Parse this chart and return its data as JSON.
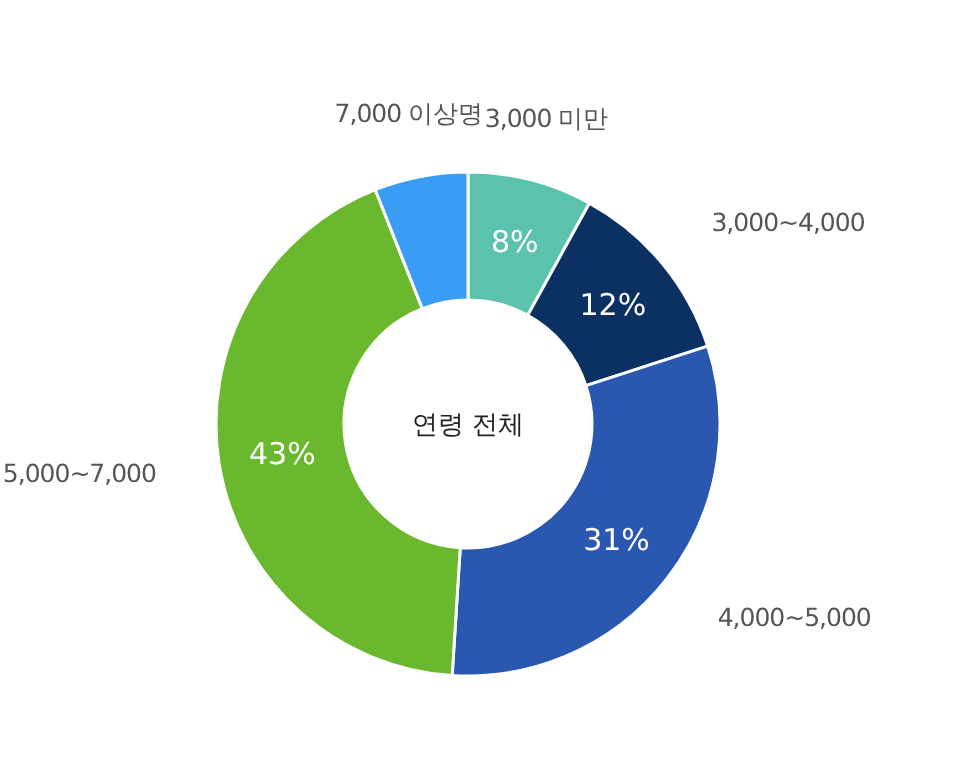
{
  "chart_data": {
    "type": "donut",
    "annotations": [
      "연령 전체"
    ],
    "categories": [
      "3,000 미만",
      "3,000~4,000",
      "4,000~5,000",
      "5,000~7,000",
      "7,000 이상명"
    ],
    "values": [
      8,
      12,
      31,
      43,
      6
    ],
    "value_labels": [
      "8%",
      "12%",
      "31%",
      "43%",
      null
    ],
    "colors": [
      "#5bc2ad",
      "#0a3161",
      "#2a57b0",
      "#6ab82e",
      "#3a9cf5"
    ]
  }
}
